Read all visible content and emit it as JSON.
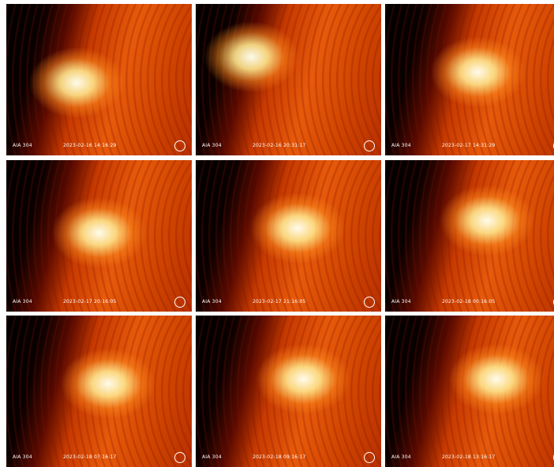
{
  "panels": [
    {
      "instrument": "AIA 304",
      "timestamp": "2023-02-16 14:16:29"
    },
    {
      "instrument": "AIA 304",
      "timestamp": "2023-02-16 20:31:17"
    },
    {
      "instrument": "AIA 304",
      "timestamp": "2023-02-17 14:31:29"
    },
    {
      "instrument": "AIA 304",
      "timestamp": "2023-02-17 20:16:05"
    },
    {
      "instrument": "AIA 304",
      "timestamp": "2023-02-17 21:16:05"
    },
    {
      "instrument": "AIA 304",
      "timestamp": "2023-02-18 00:16:05"
    },
    {
      "instrument": "AIA 304",
      "timestamp": "2023-02-18 07:16:17"
    },
    {
      "instrument": "AIA 304",
      "timestamp": "2023-02-18 09:16:17"
    },
    {
      "instrument": "AIA 304",
      "timestamp": "2023-02-18 13:16:17"
    }
  ]
}
